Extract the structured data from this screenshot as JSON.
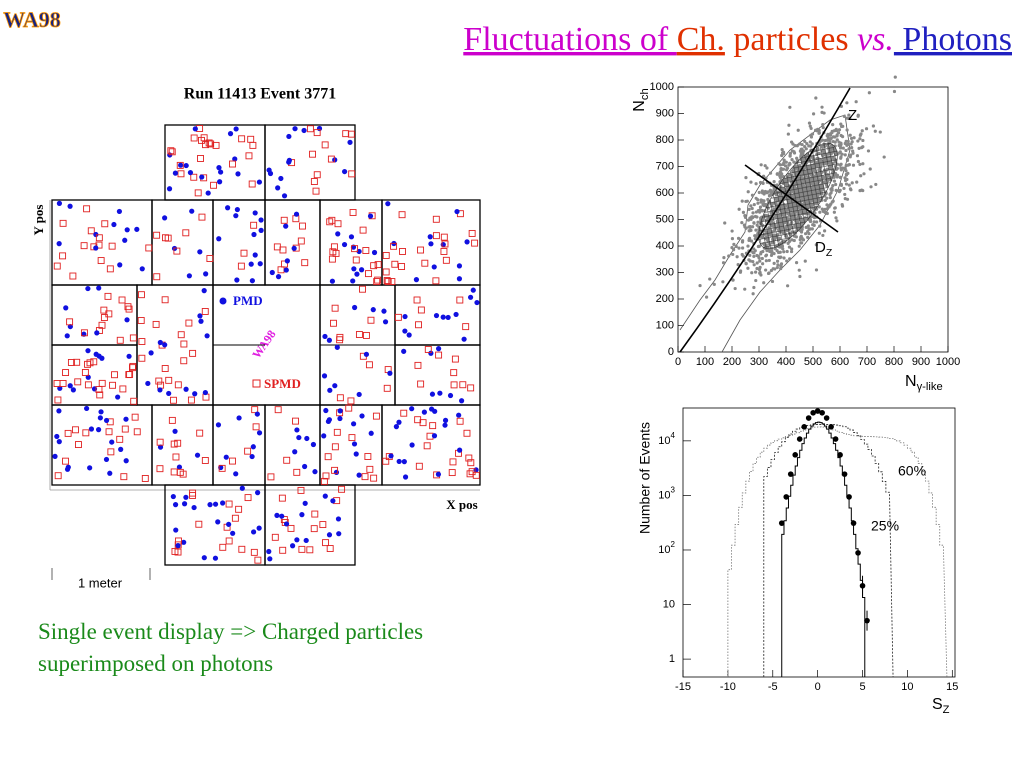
{
  "header": {
    "logo": "WA98",
    "title": [
      "Fluctuations of ",
      "Ch.",
      " particles ",
      "vs.",
      " Photons"
    ]
  },
  "event_display": {
    "title": "Run 11413 Event 3771",
    "y_label": "Y pos",
    "x_label": "X pos",
    "legend": [
      "PMD",
      "SPMD"
    ],
    "watermark": "WA98",
    "scale": "1 meter"
  },
  "caption": "Single event display => Charged particles superimposed on photons",
  "scatter": {
    "y_label": {
      "main": "N",
      "sub": "ch"
    },
    "x_label": {
      "main": "N",
      "sub": "γ-like"
    },
    "annotations": [
      {
        "main": "Z"
      },
      {
        "main": "D",
        "sub": "Z"
      }
    ],
    "xlim": [
      0,
      1000
    ],
    "ylim": [
      0,
      1000
    ],
    "xticks": [
      0,
      100,
      200,
      300,
      400,
      500,
      600,
      700,
      800,
      900,
      1000
    ],
    "yticks": [
      0,
      100,
      200,
      300,
      400,
      500,
      600,
      700,
      800,
      900,
      1000
    ]
  },
  "histogram": {
    "y_label": "Number of Events",
    "x_label": {
      "main": "S",
      "sub": "Z"
    },
    "annotations": [
      "60%",
      "25%"
    ],
    "log_y": true,
    "xlim": [
      -15,
      15.3
    ],
    "ylim": [
      0.47,
      40000
    ],
    "xticks": [
      -15,
      -10,
      -5,
      0,
      5,
      10,
      15
    ],
    "yticks": [
      1,
      10,
      {
        "value": 100,
        "label": "10",
        "exp": "2"
      },
      {
        "value": 1000,
        "label": "10",
        "exp": "3"
      },
      {
        "value": 10000,
        "label": "10",
        "exp": "4"
      }
    ]
  }
}
